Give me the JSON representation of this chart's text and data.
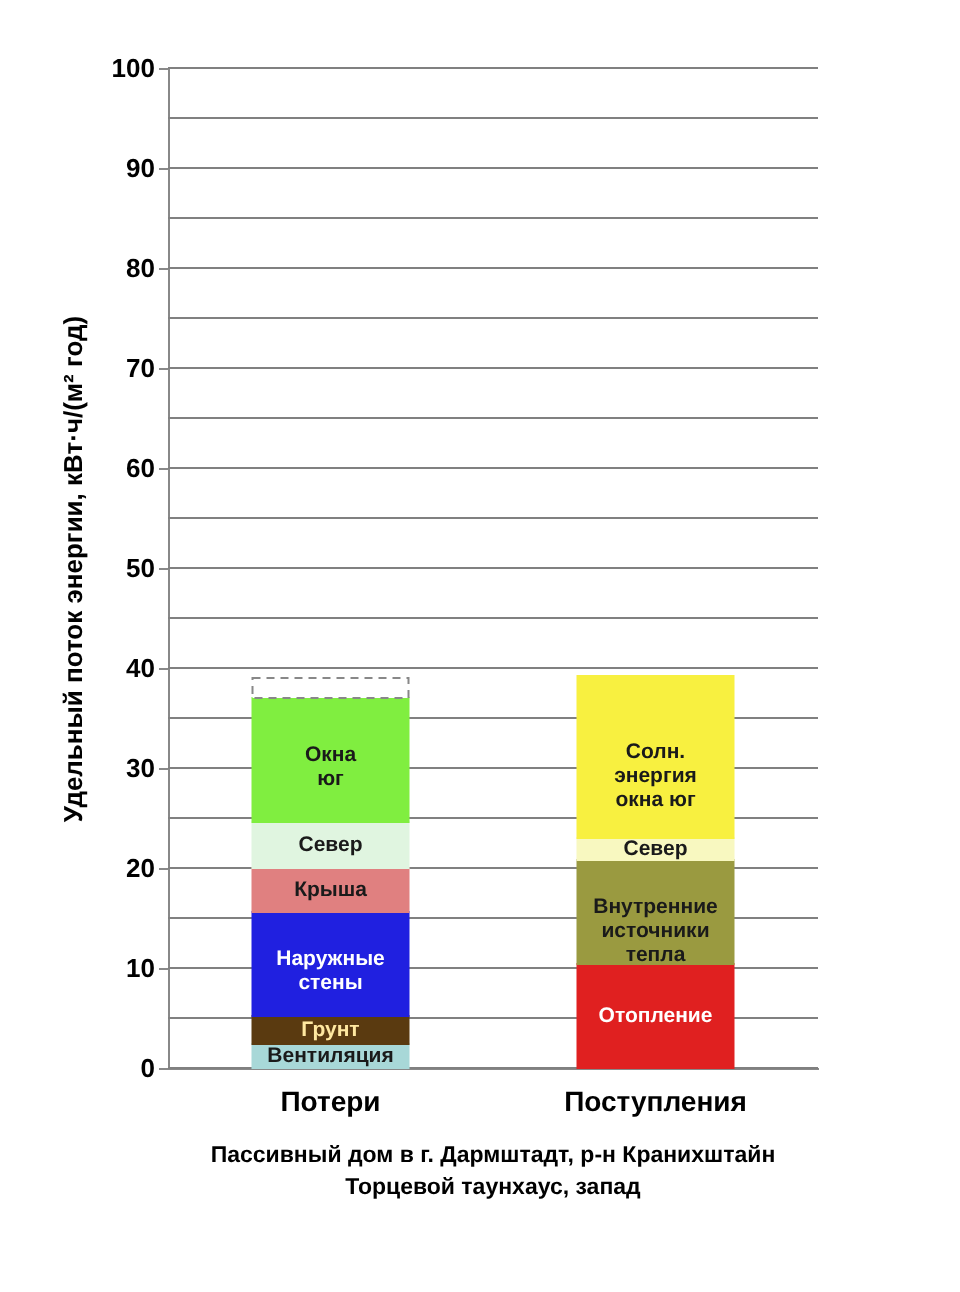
{
  "chart_data": {
    "type": "bar",
    "stacked": true,
    "categories": [
      "Потери",
      "Поступления"
    ],
    "ylabel": "Удельный поток энергии, кВт·ч/(м² год)",
    "ylim": [
      0,
      100
    ],
    "yticks": [
      0,
      {
        "value": 5,
        "label": null
      },
      10,
      {
        "value": 15,
        "label": null
      },
      20,
      {
        "value": 25,
        "label": null
      },
      30,
      {
        "value": 35,
        "label": null
      },
      40,
      {
        "value": 45,
        "label": null
      },
      50,
      {
        "value": 55,
        "label": null
      },
      60,
      {
        "value": 65,
        "label": null
      },
      70,
      {
        "value": 75,
        "label": null
      },
      80,
      {
        "value": 85,
        "label": null
      },
      90,
      {
        "value": 95,
        "label": null
      },
      100
    ],
    "grid": "y",
    "series": [
      {
        "name": "Вентиляция",
        "color": "#a8d8d8",
        "values": [
          2.4,
          null
        ]
      },
      {
        "name": "Грунт",
        "color": "#5a3a10",
        "values": [
          2.8,
          null
        ]
      },
      {
        "name": "Наружные\nстены",
        "color": "#2020e0",
        "values": [
          10.4,
          null
        ]
      },
      {
        "name": "Крыша",
        "color": "#e08080",
        "values": [
          4.4,
          null
        ]
      },
      {
        "name": "Север",
        "color": "#e0f5e0",
        "values": [
          4.6,
          null
        ]
      },
      {
        "name": "Окна\nюг",
        "color": "#80ee40",
        "values": [
          12.4,
          null
        ]
      },
      {
        "color": "#ffffff",
        "line_style": "dashed",
        "values": [
          2.0,
          null
        ]
      },
      {
        "name": "Отопление",
        "color": "#e02020",
        "values": [
          null,
          10.4
        ]
      },
      {
        "name": "Внутренние\nисточники\nтепла",
        "color": "#9a9a40",
        "values": [
          null,
          10.4
        ]
      },
      {
        "name": "Север",
        "color": "#f8f8c0",
        "values": [
          null,
          2.2
        ]
      },
      {
        "name": "Солн.\nэнергия\nокна юг",
        "color": "#f8f040",
        "values": [
          null,
          16.2
        ]
      }
    ],
    "annotations": [
      "Пассивный дом в г. Дармштадт, р-н Кранихштайн",
      "Торцевой таунхаус, запад"
    ]
  }
}
